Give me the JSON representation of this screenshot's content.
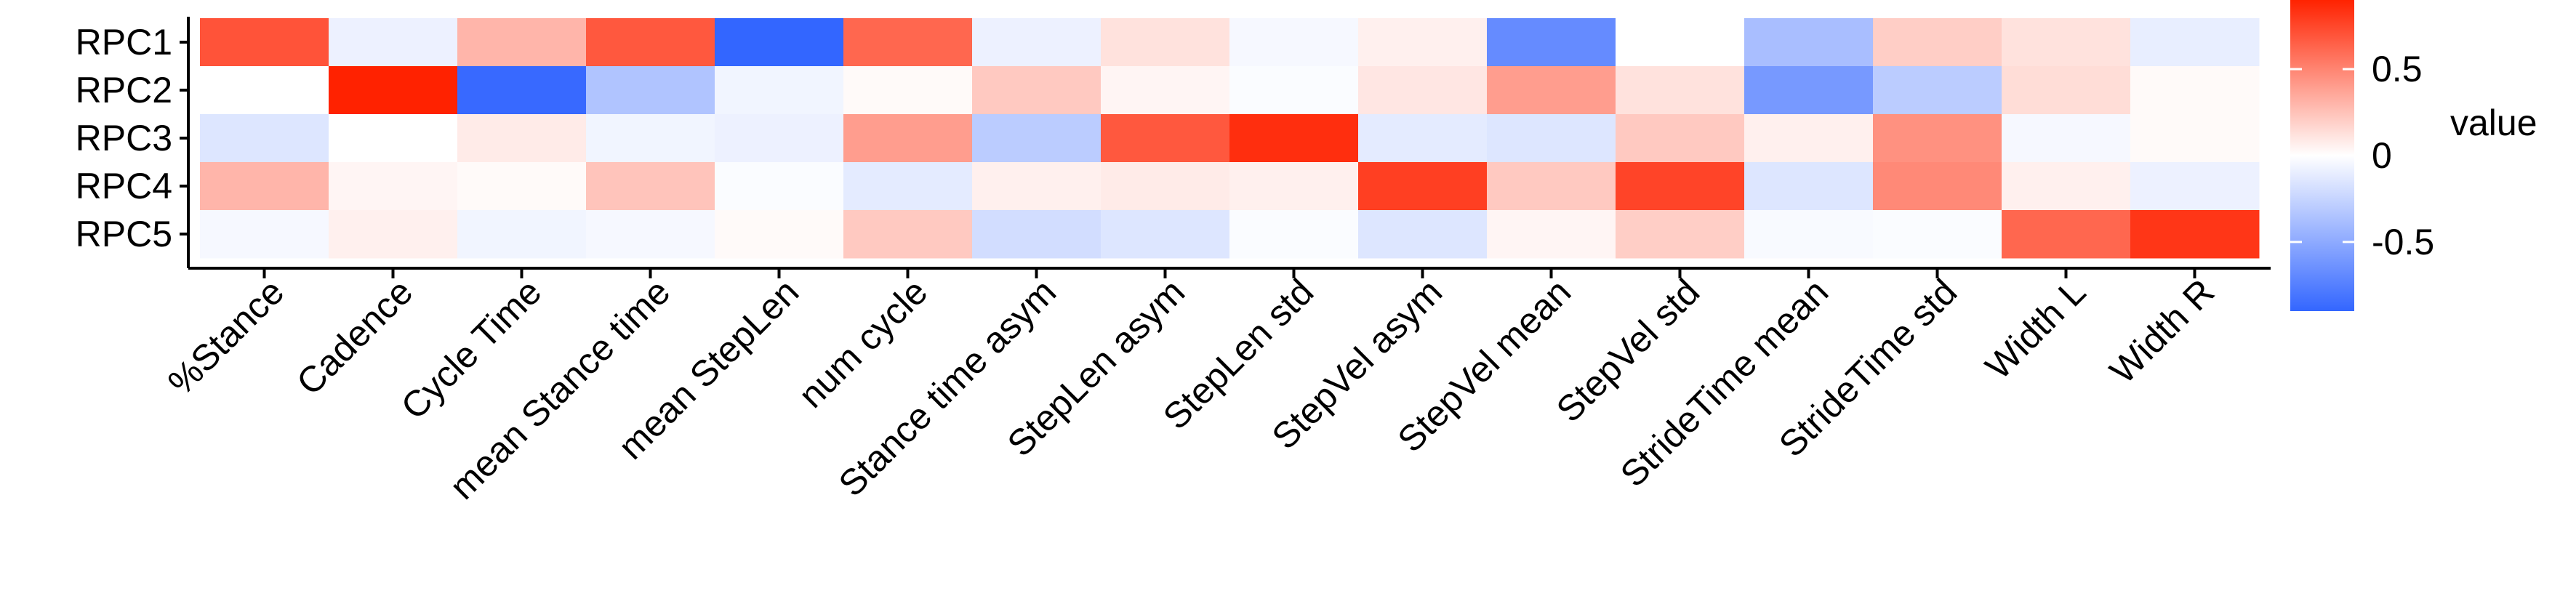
{
  "chart_data": {
    "type": "heatmap",
    "title": "",
    "xlabel": "",
    "ylabel": "",
    "rows": [
      "RPC1",
      "RPC2",
      "RPC3",
      "RPC4",
      "RPC5"
    ],
    "columns": [
      "%Stance",
      "Cadence",
      "Cycle Time",
      "mean Stance time",
      "mean StepLen",
      "num cycle",
      "Stance time asym",
      "StepLen asym",
      "StepLen std",
      "StepVel asym",
      "StepVel mean",
      "StepVel std",
      "StrideTime mean",
      "StrideTime std",
      "Width L",
      "Width R"
    ],
    "values": [
      [
        0.7,
        -0.08,
        0.3,
        0.68,
        -0.92,
        0.62,
        -0.08,
        0.12,
        -0.04,
        0.06,
        -0.68,
        0.0,
        -0.38,
        0.2,
        0.12,
        -0.1
      ],
      [
        0.0,
        0.98,
        -0.88,
        -0.35,
        -0.06,
        0.02,
        0.22,
        0.04,
        -0.02,
        0.1,
        0.4,
        0.12,
        -0.6,
        -0.3,
        0.14,
        0.02
      ],
      [
        -0.15,
        0.0,
        0.08,
        -0.06,
        -0.08,
        0.4,
        -0.3,
        0.68,
        0.85,
        -0.12,
        -0.15,
        0.22,
        0.06,
        0.45,
        -0.04,
        0.02
      ],
      [
        0.3,
        0.04,
        0.02,
        0.24,
        -0.02,
        -0.12,
        0.06,
        0.08,
        0.06,
        0.78,
        0.22,
        0.76,
        -0.15,
        0.48,
        0.06,
        -0.08
      ],
      [
        -0.04,
        0.06,
        -0.06,
        -0.04,
        0.02,
        0.22,
        -0.2,
        -0.15,
        -0.02,
        -0.15,
        0.04,
        0.2,
        -0.03,
        -0.02,
        0.62,
        0.82
      ]
    ],
    "scale": {
      "min": -0.9,
      "max": 0.9,
      "low_color": "#3366ff",
      "mid_color": "#ffffff",
      "high_color": "#ff2200"
    },
    "legend": {
      "title": "value",
      "ticks": [
        0.5,
        0,
        -0.5
      ],
      "tick_labels": [
        "0.5",
        "0",
        "-0.5"
      ],
      "placement": "right"
    }
  }
}
